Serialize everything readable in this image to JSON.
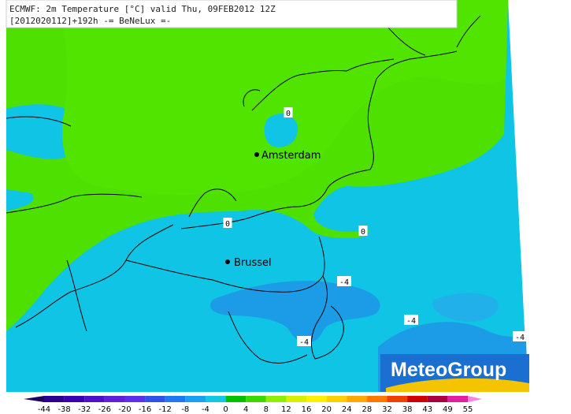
{
  "header": {
    "line1": "ECMWF: 2m Temperature [°C] valid Thu, 09FEB2012 12Z",
    "line2": "[2012020112]+192h -= BeNeLux =-"
  },
  "cities": [
    {
      "name": "Amsterdam"
    },
    {
      "name": "Brussel"
    }
  ],
  "contour_labels": [
    "0",
    "0",
    "0",
    "-4",
    "-4",
    "-4",
    "-4"
  ],
  "logo": "MeteoGroup",
  "colorbar": {
    "ticks": [
      -44,
      -38,
      -32,
      -26,
      -20,
      -16,
      -12,
      -8,
      -4,
      0,
      4,
      8,
      12,
      16,
      20,
      24,
      28,
      32,
      38,
      43,
      49,
      55
    ],
    "colors": [
      "#1a0060",
      "#2a0090",
      "#3800b0",
      "#4c10c8",
      "#6020d8",
      "#5a30e8",
      "#3050e8",
      "#1e78f0",
      "#1aa0f0",
      "#10c8e8",
      "#00c000",
      "#38d800",
      "#90ee00",
      "#d8f000",
      "#fff000",
      "#ffd000",
      "#ffa800",
      "#ff7800",
      "#f04000",
      "#d00000",
      "#a80040",
      "#e020a0",
      "#ff80e0"
    ]
  }
}
